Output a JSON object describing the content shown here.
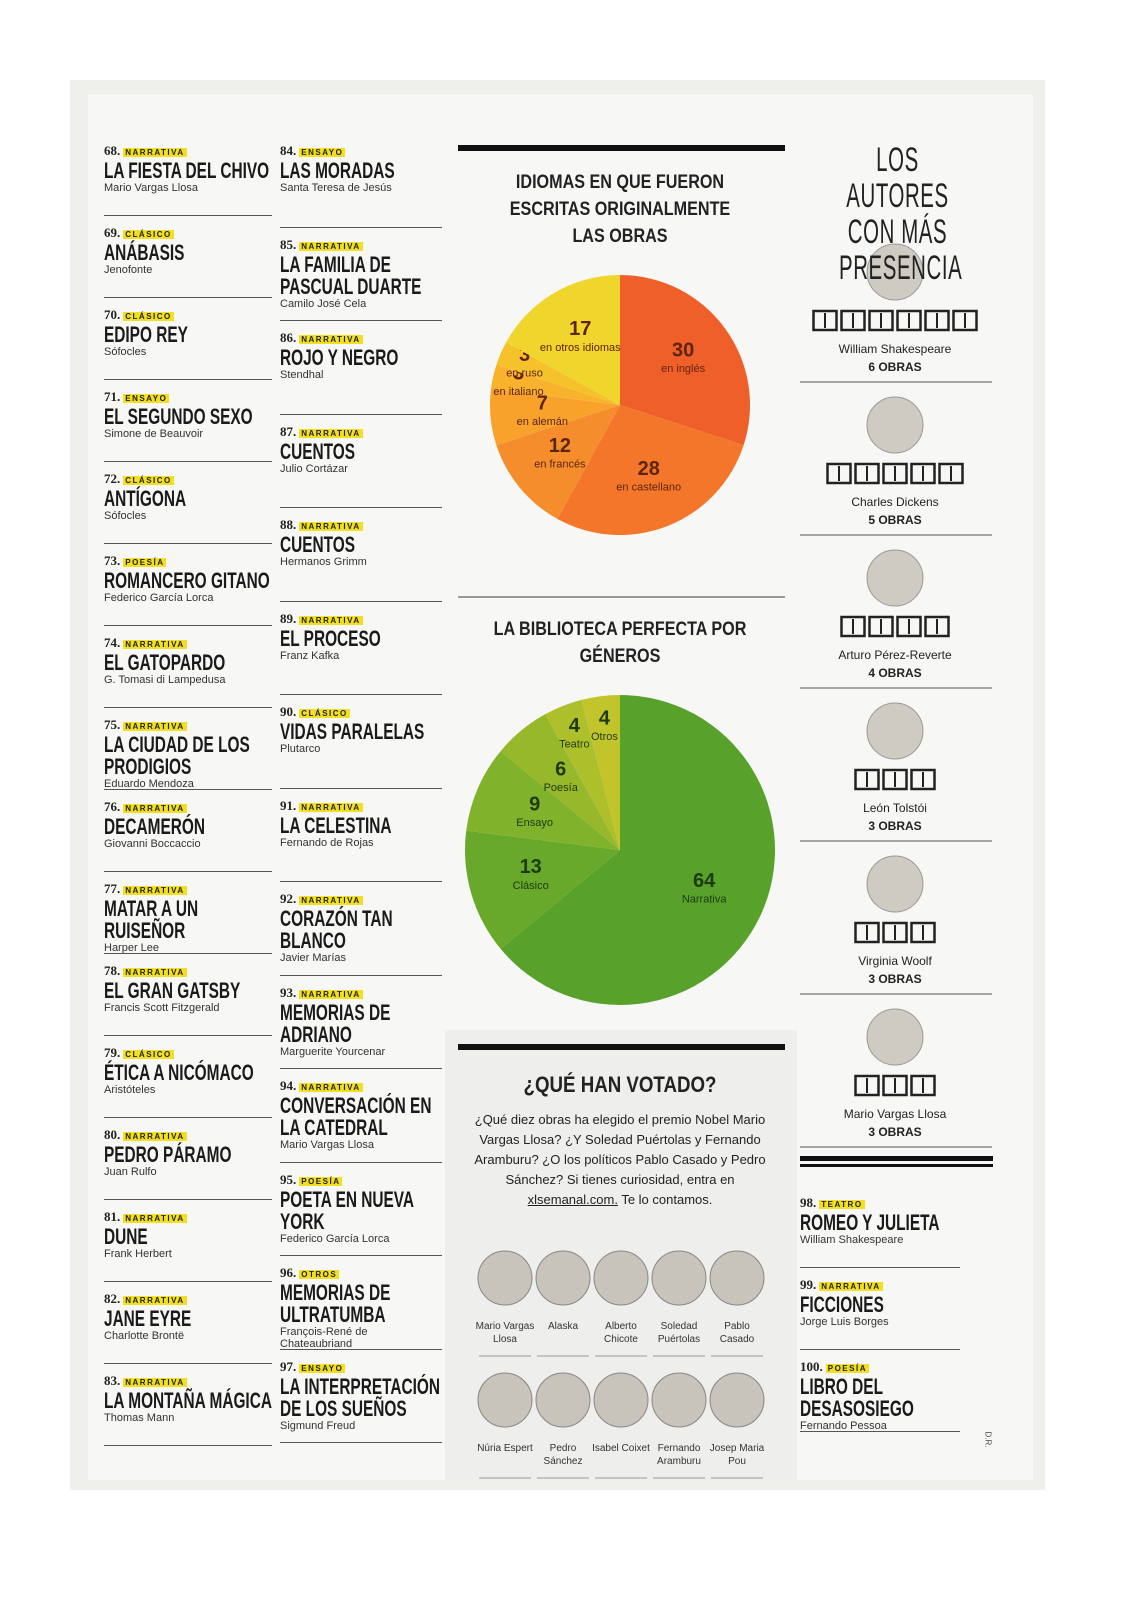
{
  "columns": [
    [
      {
        "number": "68.",
        "genre": "NARRATIVA",
        "title": "LA FIESTA DEL CHIVO",
        "author": "Mario Vargas Llosa"
      },
      {
        "number": "69.",
        "genre": "CLÁSICO",
        "title": "ANÁBASIS",
        "author": "Jenofonte"
      },
      {
        "number": "70.",
        "genre": "CLÁSICO",
        "title": "EDIPO REY",
        "author": "Sófocles"
      },
      {
        "number": "71.",
        "genre": "ENSAYO",
        "title": "EL SEGUNDO SEXO",
        "author": "Simone de Beauvoir"
      },
      {
        "number": "72.",
        "genre": "CLÁSICO",
        "title": "ANTÍGONA",
        "author": "Sófocles"
      },
      {
        "number": "73.",
        "genre": "POESÍA",
        "title": "ROMANCERO GITANO",
        "author": "Federico García Lorca"
      },
      {
        "number": "74.",
        "genre": "NARRATIVA",
        "title": "EL GATOPARDO",
        "author": "G. Tomasi di Lampedusa"
      },
      {
        "number": "75.",
        "genre": "NARRATIVA",
        "title": "LA CIUDAD DE LOS PRODIGIOS",
        "author": "Eduardo Mendoza"
      },
      {
        "number": "76.",
        "genre": "NARRATIVA",
        "title": "DECAMERÓN",
        "author": "Giovanni Boccaccio"
      },
      {
        "number": "77.",
        "genre": "NARRATIVA",
        "title": "MATAR A UN RUISEÑOR",
        "author": "Harper Lee"
      },
      {
        "number": "78.",
        "genre": "NARRATIVA",
        "title": "EL GRAN GATSBY",
        "author": "Francis Scott Fitzgerald"
      },
      {
        "number": "79.",
        "genre": "CLÁSICO",
        "title": "ÉTICA A NICÓMACO",
        "author": "Aristóteles"
      },
      {
        "number": "80.",
        "genre": "NARRATIVA",
        "title": "PEDRO PÁRAMO",
        "author": "Juan Rulfo"
      },
      {
        "number": "81.",
        "genre": "NARRATIVA",
        "title": "DUNE",
        "author": "Frank Herbert"
      },
      {
        "number": "82.",
        "genre": "NARRATIVA",
        "title": "JANE EYRE",
        "author": "Charlotte Brontë"
      },
      {
        "number": "83.",
        "genre": "NARRATIVA",
        "title": "LA MONTAÑA MÁGICA",
        "author": "Thomas Mann"
      }
    ],
    [
      {
        "number": "84.",
        "genre": "ENSAYO",
        "title": "LAS MORADAS",
        "author": "Santa Teresa de Jesús"
      },
      {
        "number": "85.",
        "genre": "NARRATIVA",
        "title": "LA FAMILIA DE PASCUAL DUARTE",
        "author": "Camilo José Cela"
      },
      {
        "number": "86.",
        "genre": "NARRATIVA",
        "title": "ROJO Y NEGRO",
        "author": "Stendhal"
      },
      {
        "number": "87.",
        "genre": "NARRATIVA",
        "title": "CUENTOS",
        "author": "Julio Cortázar"
      },
      {
        "number": "88.",
        "genre": "NARRATIVA",
        "title": "CUENTOS",
        "author": "Hermanos Grimm"
      },
      {
        "number": "89.",
        "genre": "NARRATIVA",
        "title": "EL PROCESO",
        "author": "Franz Kafka"
      },
      {
        "number": "90.",
        "genre": "CLÁSICO",
        "title": "VIDAS PARALELAS",
        "author": "Plutarco"
      },
      {
        "number": "91.",
        "genre": "NARRATIVA",
        "title": "LA CELESTINA",
        "author": "Fernando de Rojas"
      },
      {
        "number": "92.",
        "genre": "NARRATIVA",
        "title": "CORAZÓN TAN BLANCO",
        "author": "Javier Marías"
      },
      {
        "number": "93.",
        "genre": "NARRATIVA",
        "title": "MEMORIAS DE ADRIANO",
        "author": "Marguerite Yourcenar"
      },
      {
        "number": "94.",
        "genre": "NARRATIVA",
        "title": "CONVERSACIÓN EN LA CATEDRAL",
        "author": "Mario Vargas Llosa"
      },
      {
        "number": "95.",
        "genre": "POESÍA",
        "title": "POETA EN NUEVA YORK",
        "author": "Federico García Lorca"
      },
      {
        "number": "96.",
        "genre": "OTROS",
        "title": "MEMORIAS DE ULTRATUMBA",
        "author": "François-René de Chateaubriand"
      },
      {
        "number": "97.",
        "genre": "ENSAYO",
        "title": "LA INTERPRETACIÓN DE LOS SUEÑOS",
        "author": "Sigmund Freud"
      }
    ]
  ],
  "extra_list": [
    {
      "number": "98.",
      "genre": "TEATRO",
      "title": "ROMEO Y JULIETA",
      "author": "William Shakespeare"
    },
    {
      "number": "99.",
      "genre": "NARRATIVA",
      "title": "FICCIONES",
      "author": "Jorge Luis Borges"
    },
    {
      "number": "100.",
      "genre": "POESÍA",
      "title": "LIBRO DEL DESASOSIEGO",
      "author": "Fernando Pessoa"
    }
  ],
  "pies": [
    {
      "title": "IDIOMAS EN QUE FUERON ESCRITAS ORIGINALMENTE LAS OBRAS",
      "categories": [
        "en inglés",
        "en castellano",
        "en francés",
        "en alemán",
        "en italiano",
        "en ruso",
        "en otros idiomas"
      ],
      "values": [
        30,
        28,
        12,
        7,
        3,
        3,
        17
      ],
      "colors": [
        "#ef5f2a",
        "#f4762b",
        "#f68d2c",
        "#f8a22c",
        "#f9b22c",
        "#f6c22c",
        "#f0d52c"
      ]
    },
    {
      "title": "LA BIBLIOTECA PERFECTA POR GÉNEROS",
      "categories": [
        "Narrativa",
        "Clásico",
        "Ensayo",
        "Poesía",
        "Teatro",
        "Otros"
      ],
      "values": [
        64,
        13,
        9,
        6,
        4,
        4
      ],
      "colors": [
        "#58a22b",
        "#68a92b",
        "#80b22b",
        "#98b82b",
        "#adbf2b",
        "#c2c42b"
      ]
    }
  ],
  "authors_title": "LOS AUTORES CON MÁS PRESENCIA",
  "authors": [
    {
      "name": "William Shakespeare",
      "books": 6,
      "works": "6 OBRAS"
    },
    {
      "name": "Charles Dickens",
      "books": 5,
      "works": "5 OBRAS"
    },
    {
      "name": "Arturo Pérez-Reverte",
      "books": 4,
      "works": "4 OBRAS"
    },
    {
      "name": "León Tolstói",
      "books": 3,
      "works": "3 OBRAS"
    },
    {
      "name": "Virginia Woolf",
      "books": 3,
      "works": "3 OBRAS"
    },
    {
      "name": "Mario Vargas Llosa",
      "books": 3,
      "works": "3 OBRAS"
    }
  ],
  "vote_box": {
    "title": "¿QUÉ HAN VOTADO?",
    "text_before": "¿Qué diez obras ha elegido el premio Nobel Mario Vargas Llosa? ¿Y Soledad Puértolas y Fernando Aramburu? ¿O los políticos Pablo Casado y Pedro Sánchez? Si tienes curiosidad, entra en",
    "link": "xlsemanal.com.",
    "text_after": "Te lo contamos.",
    "voters": [
      "Mario Vargas Llosa",
      "Alaska",
      "Alberto Chicote",
      "Soledad Puértolas",
      "Pablo Casado",
      "Núria Espert",
      "Pedro Sánchez",
      "Isabel Coixet",
      "Fernando Aramburu",
      "Josep Maria Pou"
    ]
  },
  "credit": "D.R."
}
